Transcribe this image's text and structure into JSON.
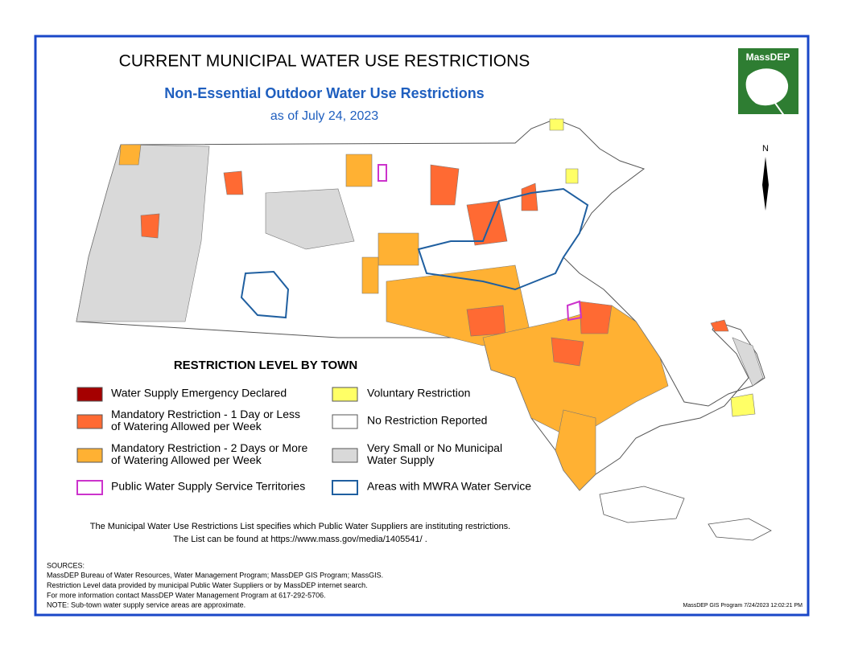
{
  "header": {
    "title": "CURRENT MUNICIPAL WATER USE RESTRICTIONS",
    "subtitle": "Non-Essential Outdoor Water Use Restrictions",
    "date": "as of July 24, 2023",
    "logo": "MassDEP",
    "north": "N"
  },
  "legend": {
    "title": "RESTRICTION LEVEL BY TOWN",
    "items": [
      {
        "label": [
          "Water Supply Emergency Declared"
        ],
        "color": "#a50000"
      },
      {
        "label": [
          "Mandatory Restriction - 1 Day or Less",
          "of Watering Allowed per Week"
        ],
        "color": "#ff6a33"
      },
      {
        "label": [
          "Mandatory Restriction - 2 Days or More",
          "of Watering Allowed per Week"
        ],
        "color": "#ffb133"
      },
      {
        "label": [
          "Public Water Supply Service Territories"
        ],
        "color": "#cc33cc",
        "outline": true
      },
      {
        "label": [
          "Voluntary Restriction"
        ],
        "color": "#ffff66"
      },
      {
        "label": [
          "No Restriction Reported"
        ],
        "color": "#ffffff"
      },
      {
        "label": [
          "Very Small or No Municipal",
          "Water Supply"
        ],
        "color": "#d9d9d9"
      },
      {
        "label": [
          "Areas with MWRA Water Service"
        ],
        "color": "#1f5fa0",
        "outline": true
      }
    ]
  },
  "note": [
    "The Municipal Water Use Restrictions List specifies which Public Water Suppliers are instituting restrictions.",
    "The List can be found at https://www.mass.gov/media/1405541/ ."
  ],
  "sources": [
    "SOURCES:",
    "MassDEP Bureau of Water Resources, Water Management Program; MassDEP GIS Program; MassGIS.",
    "Restriction Level data provided by municipal Public Water Suppliers or by MassDEP internet search.",
    "For more information contact MassDEP Water Management Program at 617-292-5706.",
    "NOTE: Sub-town water supply service areas are approximate."
  ],
  "stamp": "MassDEP GIS Program 7/24/2023 12:02:21 PM"
}
